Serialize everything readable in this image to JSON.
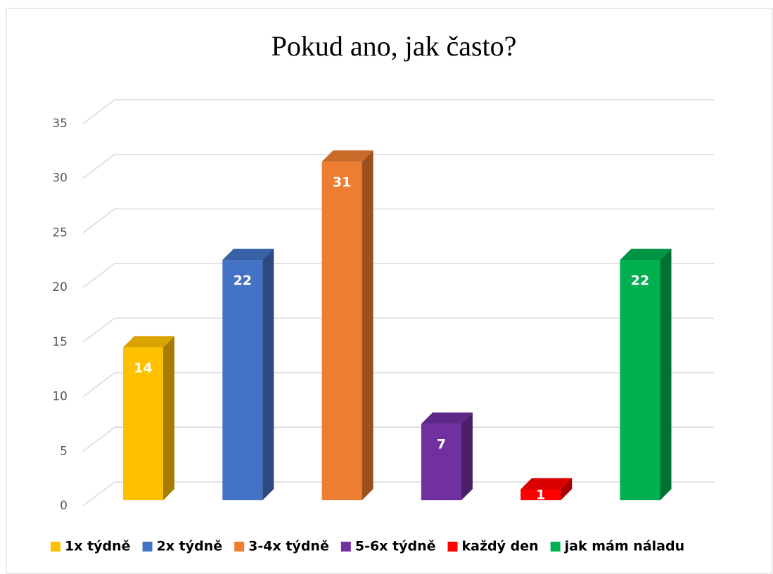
{
  "chart_data": {
    "type": "bar3d",
    "title": "Pokud ano, jak často?",
    "series": [
      {
        "name": "1x týdně",
        "color": "#ffc000",
        "values": [
          14
        ]
      },
      {
        "name": "2x týdně",
        "color": "#4472c4",
        "values": [
          22
        ]
      },
      {
        "name": "3-4x týdně",
        "color": "#ed7d31",
        "values": [
          31
        ]
      },
      {
        "name": "5-6x týdně",
        "color": "#7030a0",
        "values": [
          7
        ]
      },
      {
        "name": "každý den",
        "color": "#ff0000",
        "values": [
          1
        ]
      },
      {
        "name": "jak mám náladu",
        "color": "#00b050",
        "values": [
          22
        ]
      }
    ],
    "ylim": [
      0,
      35
    ],
    "yticks": [
      0,
      5,
      10,
      15,
      20,
      25,
      30,
      35
    ],
    "grid": true,
    "legend": "bottom"
  }
}
